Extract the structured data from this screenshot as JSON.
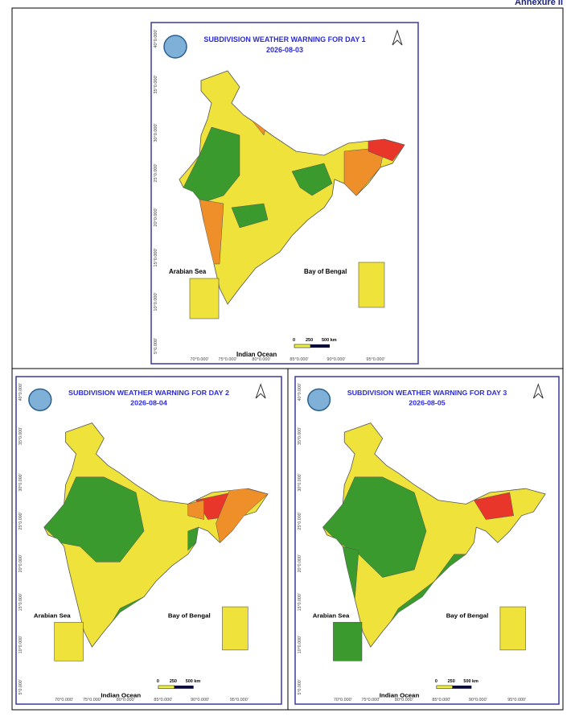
{
  "header": {
    "annexure": "Annexure II"
  },
  "maps": [
    {
      "title": "SUBDIVISION WEATHER WARNING FOR DAY 1",
      "date": "2026-08-03",
      "labels": {
        "arabian_sea": "Arabian Sea",
        "bay_of_bengal": "Bay of Bengal",
        "indian_ocean": "Indian Ocean"
      },
      "scale": [
        "0",
        "250",
        "500 km"
      ],
      "lat_labels": [
        "40°0.000'",
        "35°0.000'",
        "30°0.000'",
        "25°0.000'",
        "20°0.000'",
        "15°0.000'",
        "10°0.000'",
        "5°0.000'"
      ],
      "lon_labels": [
        "70°0.000'",
        "75°0.000'",
        "80°0.000'",
        "85°0.000'",
        "90°0.000'",
        "95°0.000'"
      ]
    },
    {
      "title": "SUBDIVISION WEATHER WARNING FOR DAY 2",
      "date": "2026-08-04",
      "labels": {
        "arabian_sea": "Arabian Sea",
        "bay_of_bengal": "Bay of Bengal",
        "indian_ocean": "Indian Ocean"
      },
      "scale": [
        "0",
        "250",
        "500 km"
      ],
      "lat_labels": [
        "40°0.000'",
        "35°0.000'",
        "30°0.000'",
        "25°0.000'",
        "20°0.000'",
        "15°0.000'",
        "10°0.000'",
        "5°0.000'"
      ],
      "lon_labels": [
        "70°0.000'",
        "75°0.000'",
        "80°0.000'",
        "85°0.000'",
        "90°0.000'",
        "95°0.000'"
      ]
    },
    {
      "title": "SUBDIVISION WEATHER WARNING FOR DAY 3",
      "date": "2026-08-05",
      "labels": {
        "arabian_sea": "Arabian Sea",
        "bay_of_bengal": "Bay of Bengal",
        "indian_ocean": "Indian Ocean"
      },
      "scale": [
        "0",
        "250",
        "500 km"
      ],
      "lat_labels": [
        "40°0.000'",
        "35°0.000'",
        "30°0.000'",
        "25°0.000'",
        "20°0.000'",
        "15°0.000'",
        "10°0.000'",
        "5°0.000'"
      ],
      "lon_labels": [
        "70°0.000'",
        "75°0.000'",
        "80°0.000'",
        "85°0.000'",
        "90°0.000'",
        "95°0.000'"
      ]
    }
  ]
}
